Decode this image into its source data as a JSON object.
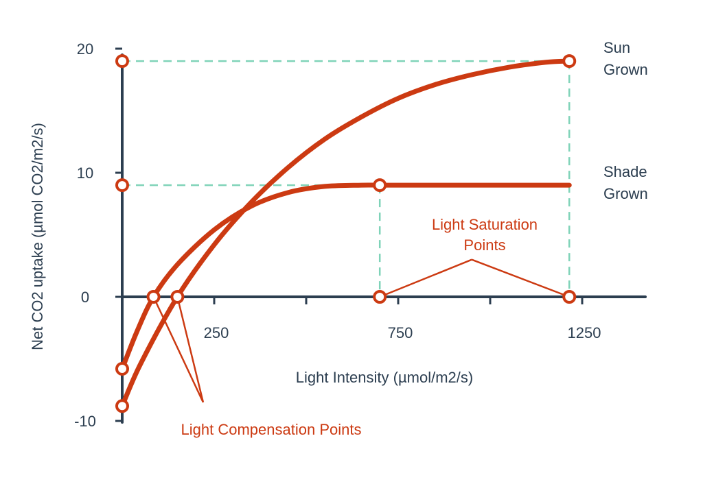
{
  "chart_data": {
    "type": "line",
    "xlabel": "Light Intensity  (µmol/m2/s)",
    "ylabel": "Net CO2 uptake  (µmol CO2/m2/s)",
    "xlim": [
      0,
      1400
    ],
    "ylim": [
      -10,
      20
    ],
    "x_tick_labels": [
      {
        "value": 250,
        "label": "250"
      },
      {
        "value": 750,
        "label": "750"
      },
      {
        "value": 1250,
        "label": "1250"
      }
    ],
    "x_tick_marks": [
      250,
      500,
      750,
      1000,
      1250
    ],
    "y_ticks": [
      {
        "value": 20,
        "label": "20"
      },
      {
        "value": 10,
        "label": "10"
      },
      {
        "value": 0,
        "label": "0"
      },
      {
        "value": -10,
        "label": "-10"
      }
    ],
    "colors": {
      "series": "#cc3a12",
      "axis": "#2c3e50",
      "guide": "#7fd3b8",
      "marker_fill": "#ffffff"
    },
    "series": [
      {
        "name": "Sun Grown",
        "label_lines": [
          "Sun",
          "Grown"
        ],
        "x": [
          0,
          50,
          150,
          250,
          350,
          450,
          550,
          650,
          750,
          850,
          950,
          1050,
          1150,
          1215
        ],
        "y": [
          -8.8,
          -5.4,
          0.0,
          4.2,
          7.6,
          10.4,
          12.7,
          14.5,
          16.0,
          17.1,
          17.9,
          18.5,
          18.9,
          19.0
        ]
      },
      {
        "name": "Shade Grown",
        "label_lines": [
          "Shade",
          "Grown"
        ],
        "x": [
          0,
          40,
          85,
          150,
          250,
          350,
          450,
          550,
          650,
          700,
          800,
          900,
          1000,
          1100,
          1215
        ],
        "y": [
          -5.8,
          -2.8,
          0.0,
          2.6,
          5.4,
          7.3,
          8.4,
          8.9,
          9.0,
          9.0,
          9.0,
          9.0,
          9.0,
          9.0,
          9.0
        ]
      }
    ],
    "markers": [
      {
        "x": 0,
        "y": 19
      },
      {
        "x": 0,
        "y": 9
      },
      {
        "x": 0,
        "y": -5.8
      },
      {
        "x": 0,
        "y": -8.8
      },
      {
        "x": 85,
        "y": 0
      },
      {
        "x": 150,
        "y": 0
      },
      {
        "x": 700,
        "y": 9
      },
      {
        "x": 700,
        "y": 0
      },
      {
        "x": 1215,
        "y": 19
      },
      {
        "x": 1215,
        "y": 0
      }
    ],
    "guides": [
      {
        "from": [
          0,
          19
        ],
        "to": [
          1215,
          19
        ]
      },
      {
        "from": [
          1215,
          19
        ],
        "to": [
          1215,
          0
        ]
      },
      {
        "from": [
          0,
          9
        ],
        "to": [
          700,
          9
        ]
      },
      {
        "from": [
          700,
          9
        ],
        "to": [
          700,
          0
        ]
      }
    ],
    "annotations": [
      {
        "name": "light-saturation-points",
        "lines": [
          "Light Saturation",
          "Points"
        ],
        "anchor": [
          950,
          3
        ],
        "targets": [
          [
            700,
            0
          ],
          [
            1215,
            0
          ]
        ]
      },
      {
        "name": "light-compensation-points",
        "lines": [
          "Light Compensation Points"
        ],
        "anchor": [
          220,
          -8.5
        ],
        "targets": [
          [
            85,
            0
          ],
          [
            150,
            0
          ]
        ]
      }
    ]
  }
}
